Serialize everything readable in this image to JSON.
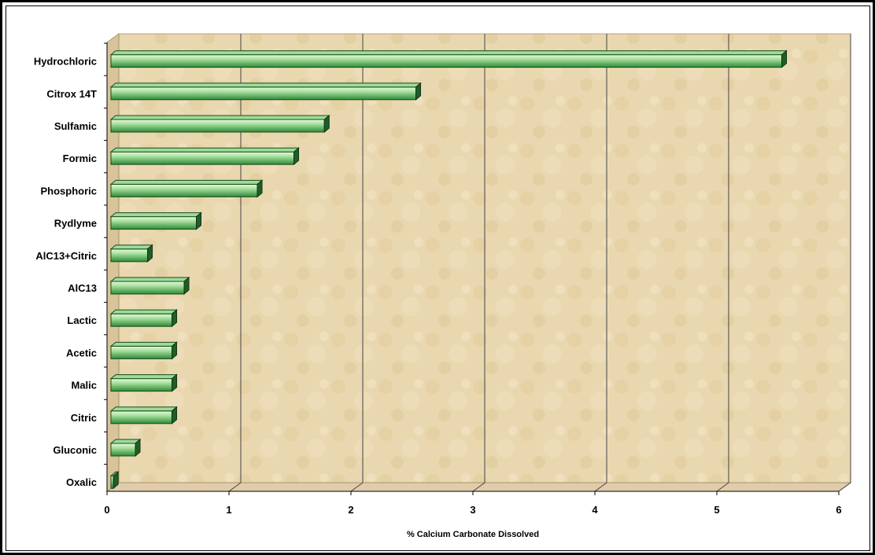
{
  "chart_data": {
    "type": "bar",
    "orientation": "horizontal",
    "categories": [
      "Hydrochloric",
      "Citrox 14T",
      "Sulfamic",
      "Formic",
      "Phosphoric",
      "Rydlyme",
      "AlC13+Citric",
      "AlC13",
      "Lactic",
      "Acetic",
      "Malic",
      "Citric",
      "Gluconic",
      "Oxalic"
    ],
    "values": [
      5.5,
      2.5,
      1.75,
      1.5,
      1.2,
      0.7,
      0.3,
      0.6,
      0.5,
      0.5,
      0.5,
      0.5,
      0.2,
      0.02
    ],
    "xlabel": "% Calcium Carbonate Dissolved",
    "xlim": [
      0,
      6
    ],
    "xticks": [
      "0",
      "1",
      "2",
      "3",
      "4",
      "5",
      "6"
    ],
    "grid": "vertical",
    "legend": "none",
    "colors": {
      "bar_front_light": "#d8f5d2",
      "bar_front_dark": "#2f8a3a",
      "bar_top": "#9edc96",
      "bar_side": "#1f5e26",
      "plot_background": "#e8d5ad",
      "floor": "#e0ccaa"
    }
  }
}
